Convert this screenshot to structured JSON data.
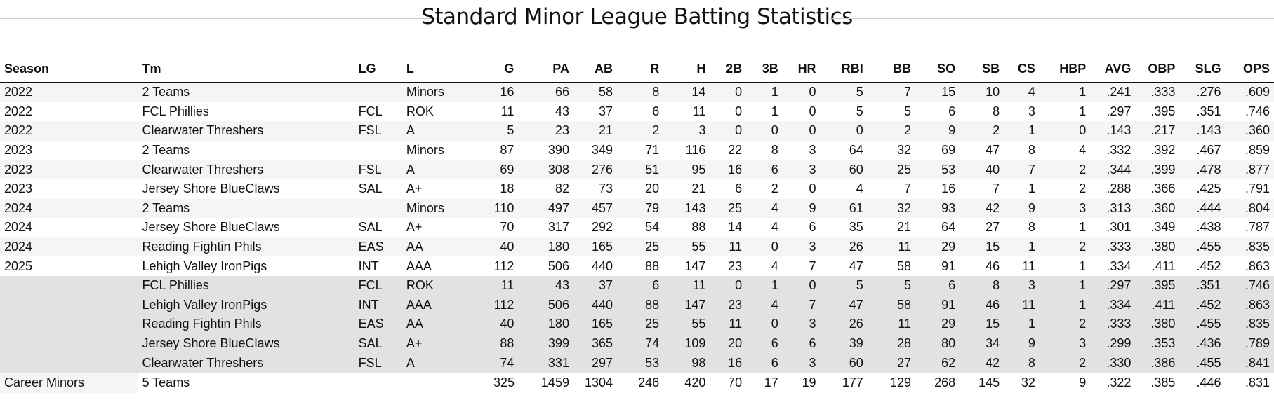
{
  "title": "Standard Minor League Batting Statistics",
  "columns": [
    "Season",
    "Tm",
    "LG",
    "L",
    "G",
    "PA",
    "AB",
    "R",
    "H",
    "2B",
    "3B",
    "HR",
    "RBI",
    "BB",
    "SO",
    "SB",
    "CS",
    "HBP",
    "AVG",
    "OBP",
    "SLG",
    "OPS"
  ],
  "season_rows": [
    [
      "2022",
      "2 Teams",
      "",
      "Minors",
      "16",
      "66",
      "58",
      "8",
      "14",
      "0",
      "1",
      "0",
      "5",
      "7",
      "15",
      "10",
      "4",
      "1",
      ".241",
      ".333",
      ".276",
      ".609"
    ],
    [
      "2022",
      "FCL Phillies",
      "FCL",
      "ROK",
      "11",
      "43",
      "37",
      "6",
      "11",
      "0",
      "1",
      "0",
      "5",
      "5",
      "6",
      "8",
      "3",
      "1",
      ".297",
      ".395",
      ".351",
      ".746"
    ],
    [
      "2022",
      "Clearwater Threshers",
      "FSL",
      "A",
      "5",
      "23",
      "21",
      "2",
      "3",
      "0",
      "0",
      "0",
      "0",
      "2",
      "9",
      "2",
      "1",
      "0",
      ".143",
      ".217",
      ".143",
      ".360"
    ],
    [
      "2023",
      "2 Teams",
      "",
      "Minors",
      "87",
      "390",
      "349",
      "71",
      "116",
      "22",
      "8",
      "3",
      "64",
      "32",
      "69",
      "47",
      "8",
      "4",
      ".332",
      ".392",
      ".467",
      ".859"
    ],
    [
      "2023",
      "Clearwater Threshers",
      "FSL",
      "A",
      "69",
      "308",
      "276",
      "51",
      "95",
      "16",
      "6",
      "3",
      "60",
      "25",
      "53",
      "40",
      "7",
      "2",
      ".344",
      ".399",
      ".478",
      ".877"
    ],
    [
      "2023",
      "Jersey Shore BlueClaws",
      "SAL",
      "A+",
      "18",
      "82",
      "73",
      "20",
      "21",
      "6",
      "2",
      "0",
      "4",
      "7",
      "16",
      "7",
      "1",
      "2",
      ".288",
      ".366",
      ".425",
      ".791"
    ],
    [
      "2024",
      "2 Teams",
      "",
      "Minors",
      "110",
      "497",
      "457",
      "79",
      "143",
      "25",
      "4",
      "9",
      "61",
      "32",
      "93",
      "42",
      "9",
      "3",
      ".313",
      ".360",
      ".444",
      ".804"
    ],
    [
      "2024",
      "Jersey Shore BlueClaws",
      "SAL",
      "A+",
      "70",
      "317",
      "292",
      "54",
      "88",
      "14",
      "4",
      "6",
      "35",
      "21",
      "64",
      "27",
      "8",
      "1",
      ".301",
      ".349",
      ".438",
      ".787"
    ],
    [
      "2024",
      "Reading Fightin Phils",
      "EAS",
      "AA",
      "40",
      "180",
      "165",
      "25",
      "55",
      "11",
      "0",
      "3",
      "26",
      "11",
      "29",
      "15",
      "1",
      "2",
      ".333",
      ".380",
      ".455",
      ".835"
    ],
    [
      "2025",
      "Lehigh Valley IronPigs",
      "INT",
      "AAA",
      "112",
      "506",
      "440",
      "88",
      "147",
      "23",
      "4",
      "7",
      "47",
      "58",
      "91",
      "46",
      "11",
      "1",
      ".334",
      ".411",
      ".452",
      ".863"
    ]
  ],
  "team_rows": [
    [
      "",
      "FCL Phillies",
      "FCL",
      "ROK",
      "11",
      "43",
      "37",
      "6",
      "11",
      "0",
      "1",
      "0",
      "5",
      "5",
      "6",
      "8",
      "3",
      "1",
      ".297",
      ".395",
      ".351",
      ".746"
    ],
    [
      "",
      "Lehigh Valley IronPigs",
      "INT",
      "AAA",
      "112",
      "506",
      "440",
      "88",
      "147",
      "23",
      "4",
      "7",
      "47",
      "58",
      "91",
      "46",
      "11",
      "1",
      ".334",
      ".411",
      ".452",
      ".863"
    ],
    [
      "",
      "Reading Fightin Phils",
      "EAS",
      "AA",
      "40",
      "180",
      "165",
      "25",
      "55",
      "11",
      "0",
      "3",
      "26",
      "11",
      "29",
      "15",
      "1",
      "2",
      ".333",
      ".380",
      ".455",
      ".835"
    ],
    [
      "",
      "Jersey Shore BlueClaws",
      "SAL",
      "A+",
      "88",
      "399",
      "365",
      "74",
      "109",
      "20",
      "6",
      "6",
      "39",
      "28",
      "80",
      "34",
      "9",
      "3",
      ".299",
      ".353",
      ".436",
      ".789"
    ],
    [
      "",
      "Clearwater Threshers",
      "FSL",
      "A",
      "74",
      "331",
      "297",
      "53",
      "98",
      "16",
      "6",
      "3",
      "60",
      "27",
      "62",
      "42",
      "8",
      "2",
      ".330",
      ".386",
      ".455",
      ".841"
    ]
  ],
  "career_row": [
    "Career Minors",
    "5 Teams",
    "",
    "",
    "325",
    "1459",
    "1304",
    "246",
    "420",
    "70",
    "17",
    "19",
    "177",
    "129",
    "268",
    "145",
    "32",
    "9",
    ".322",
    ".385",
    ".446",
    ".831"
  ]
}
